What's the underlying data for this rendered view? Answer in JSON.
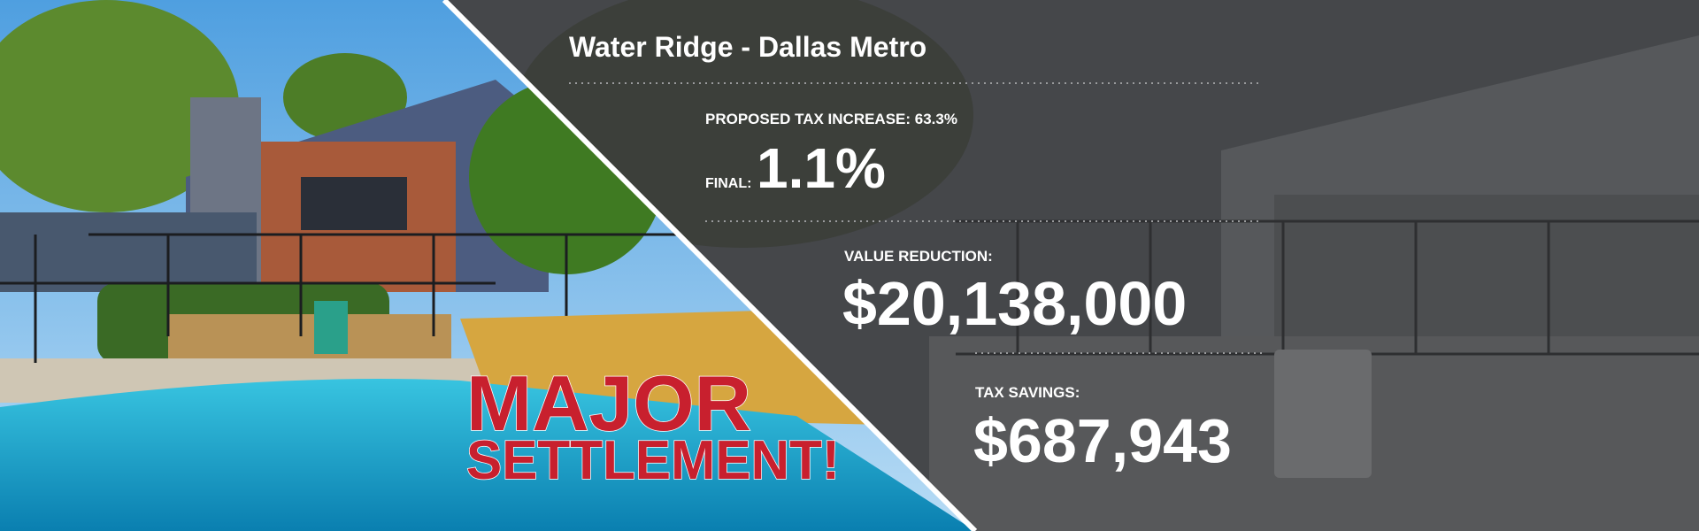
{
  "property": {
    "title": "Water Ridge - Dallas Metro"
  },
  "stats": {
    "proposed_increase": "PROPOSED TAX INCREASE: 63.3%",
    "final_label": "FINAL:",
    "final_value": "1.1%",
    "value_reduction_label": "VALUE REDUCTION:",
    "value_reduction": "$20,138,000",
    "tax_savings_label": "TAX SAVINGS:",
    "tax_savings": "$687,943"
  },
  "headline": {
    "line1": "MAJOR",
    "line2": "SETTLEMENT!"
  }
}
